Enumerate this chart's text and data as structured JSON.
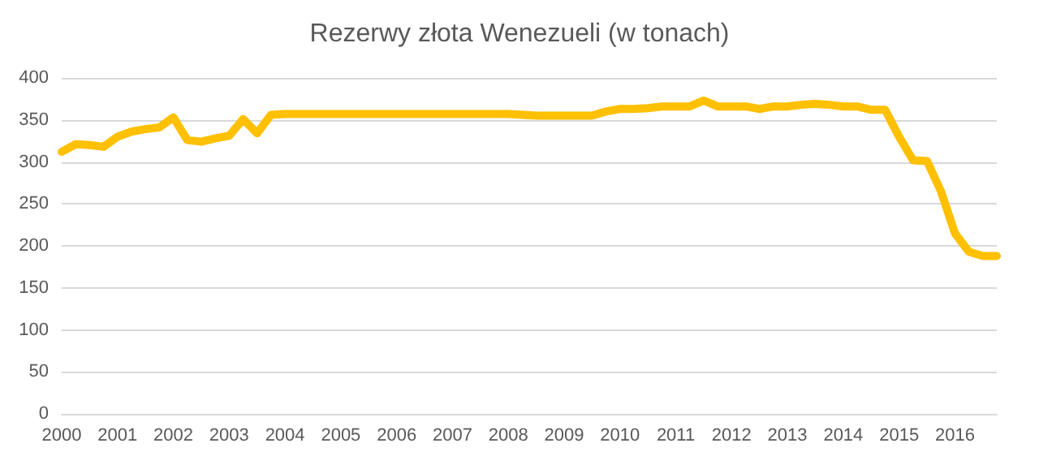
{
  "chart_data": {
    "type": "line",
    "title": "Rezerwy złota Wenezueli (w tonach)",
    "categories": [
      "2000",
      null,
      null,
      null,
      "2001",
      null,
      null,
      null,
      "2002",
      null,
      null,
      null,
      "2003",
      null,
      null,
      null,
      "2004",
      null,
      null,
      null,
      "2005",
      null,
      null,
      null,
      "2006",
      null,
      null,
      null,
      "2007",
      null,
      null,
      null,
      "2008",
      null,
      null,
      null,
      "2009",
      null,
      null,
      null,
      "2010",
      null,
      null,
      null,
      "2011",
      null,
      null,
      null,
      "2012",
      null,
      null,
      null,
      "2013",
      null,
      null,
      null,
      "2014",
      null,
      null,
      null,
      "2015",
      null,
      null,
      null,
      "2016",
      null,
      null,
      null
    ],
    "series": [
      {
        "color": "#ffc000",
        "values": [
          312,
          321,
          320,
          318,
          330,
          336,
          339,
          341,
          353,
          326,
          324,
          328,
          331,
          351,
          334,
          356,
          357,
          357,
          357,
          357,
          357,
          357,
          357,
          357,
          357,
          357,
          357,
          357,
          357,
          357,
          357,
          357,
          357,
          356,
          355,
          355,
          355,
          355,
          355,
          360,
          363,
          363,
          364,
          366,
          366,
          366,
          373,
          366,
          366,
          366,
          363,
          366,
          366,
          368,
          369,
          368,
          366,
          366,
          362,
          362,
          330,
          302,
          301,
          265,
          215,
          193,
          188,
          188
        ]
      }
    ],
    "ylim": [
      0,
      400
    ],
    "yticks": [
      0,
      50,
      100,
      150,
      200,
      250,
      300,
      350,
      400
    ],
    "grid": "y",
    "marker": "none",
    "line_style": "solid"
  }
}
